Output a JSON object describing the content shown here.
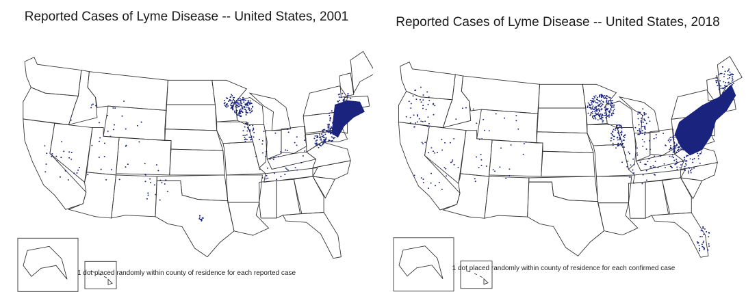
{
  "maps": [
    {
      "title": "Reported Cases of Lyme Disease -- United States, 2001",
      "caption": "1 dot placed randomly within county of residence for each reported case",
      "year": 2001
    },
    {
      "title": "Reported Cases of Lyme Disease -- United States, 2018",
      "caption": "1 dot placed randomly within county of residence for each confirmed case",
      "year": 2018
    }
  ],
  "dot_color": "#1a237e"
}
